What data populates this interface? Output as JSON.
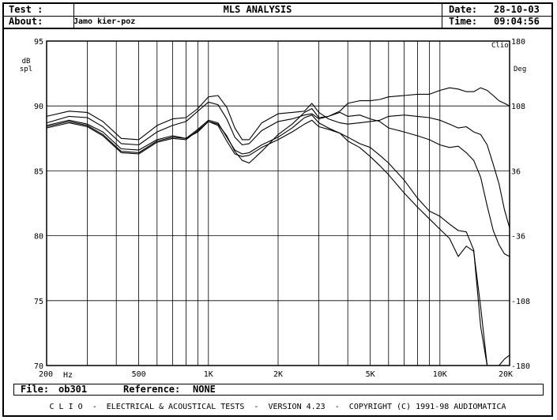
{
  "header": {
    "test_label": "Test :",
    "title": "MLS ANALYSIS",
    "date_label": "Date:",
    "date_value": "28-10-03",
    "about_label": "About:",
    "about_value": "Jamo kier-poz",
    "time_label": "Time:",
    "time_value": "09:04:56"
  },
  "footer": {
    "file_label": "File:",
    "file_value": "ob301",
    "reference_label": "Reference:",
    "reference_value": "NONE",
    "copyright": "C L I O  -  ELECTRICAL & ACOUSTICAL TESTS  -  VERSION 4.23  -  COPYRIGHT (C) 1991-98 AUDIOMATICA"
  },
  "chart_data": {
    "type": "line",
    "x_scale": "log",
    "xlim": [
      200,
      20000
    ],
    "ylim": [
      70,
      95
    ],
    "y2lim": [
      -180,
      180
    ],
    "grid": true,
    "left_unit": "dB\nspl",
    "right_unit": "Deg",
    "corner_label": "Clio",
    "x_ticks": [
      {
        "value": 200,
        "label": "200"
      },
      {
        "value": 500,
        "label": "500"
      },
      {
        "value": 1000,
        "label": "1K"
      },
      {
        "value": 2000,
        "label": "2K"
      },
      {
        "value": 5000,
        "label": "5K"
      },
      {
        "value": 10000,
        "label": "10K"
      },
      {
        "value": 20000,
        "label": "20K"
      }
    ],
    "x_unit_label": "Hz",
    "y_ticks": [
      {
        "value": 95,
        "label": "95"
      },
      {
        "value": 90,
        "label": "90"
      },
      {
        "value": 85,
        "label": "85"
      },
      {
        "value": 80,
        "label": "80"
      },
      {
        "value": 75,
        "label": "75"
      },
      {
        "value": 70,
        "label": "70"
      }
    ],
    "y2_ticks": [
      {
        "value": 180,
        "label": "180"
      },
      {
        "value": 108,
        "label": "108"
      },
      {
        "value": 36,
        "label": "36"
      },
      {
        "value": -36,
        "label": "-36"
      },
      {
        "value": -108,
        "label": "-108"
      },
      {
        "value": -180,
        "label": "-180"
      }
    ],
    "series": [
      {
        "x": [
          200,
          250,
          300,
          350,
          420,
          500,
          600,
          700,
          800,
          900,
          1000,
          1100,
          1200,
          1300,
          1400,
          1500,
          1700,
          2000,
          2300,
          2600,
          2800,
          3000,
          3300,
          3700,
          4000,
          4500,
          5000,
          5500,
          6000,
          7000,
          8000,
          9000,
          10000,
          11000,
          12000,
          13000,
          14000,
          15000,
          16000,
          17000,
          18000,
          19000,
          20000
        ],
        "y": [
          89.2,
          89.6,
          89.5,
          88.8,
          87.5,
          87.4,
          88.5,
          89.0,
          89.1,
          89.8,
          90.7,
          90.8,
          89.9,
          88.3,
          87.4,
          87.4,
          88.7,
          89.4,
          89.5,
          89.6,
          90.2,
          89.5,
          89.0,
          88.7,
          88.6,
          88.7,
          88.8,
          88.9,
          89.2,
          89.3,
          89.2,
          89.1,
          88.9,
          88.6,
          88.3,
          88.4,
          88.0,
          87.8,
          87.0,
          85.5,
          84.0,
          82.0,
          80.6
        ]
      },
      {
        "x": [
          200,
          250,
          300,
          350,
          420,
          500,
          600,
          700,
          800,
          900,
          1000,
          1100,
          1200,
          1300,
          1400,
          1500,
          1700,
          2000,
          2300,
          2600,
          2800,
          3000,
          3300,
          3700,
          4000,
          4500,
          5000,
          5500,
          6000,
          7000,
          8000,
          9000,
          10000,
          11000,
          12000,
          13000,
          14000,
          15000,
          16000,
          17000,
          18000,
          19000,
          20000
        ],
        "y": [
          88.7,
          89.2,
          89.1,
          88.4,
          87.1,
          87.0,
          88.0,
          88.5,
          88.8,
          89.6,
          90.3,
          90.1,
          89.0,
          87.6,
          87.0,
          87.1,
          88.1,
          88.8,
          89.0,
          89.3,
          89.4,
          89.0,
          89.2,
          89.5,
          89.2,
          89.3,
          89.0,
          88.8,
          88.3,
          88.0,
          87.7,
          87.4,
          87.0,
          86.8,
          86.9,
          86.4,
          85.8,
          84.5,
          82.3,
          80.4,
          79.3,
          78.6,
          78.4
        ]
      },
      {
        "x": [
          200,
          250,
          300,
          350,
          420,
          500,
          600,
          700,
          800,
          900,
          1000,
          1100,
          1200,
          1300,
          1400,
          1500,
          1700,
          2000,
          2300,
          2600,
          2800,
          3000,
          3300,
          3700,
          4000,
          4500,
          5000,
          5500,
          6000,
          7000,
          8000,
          9000,
          10000,
          11000,
          12000,
          13000,
          14000,
          15000,
          16000,
          17000,
          18000,
          19000,
          20000
        ],
        "y": [
          88.5,
          88.9,
          88.6,
          88.0,
          86.7,
          86.6,
          87.4,
          87.7,
          87.5,
          88.0,
          88.8,
          88.6,
          87.7,
          86.5,
          85.8,
          85.6,
          86.5,
          87.8,
          88.6,
          89.5,
          89.8,
          89.1,
          89.2,
          89.6,
          90.2,
          90.4,
          90.4,
          90.5,
          90.7,
          90.8,
          90.9,
          90.9,
          91.2,
          91.4,
          91.3,
          91.1,
          91.1,
          91.4,
          91.2,
          90.8,
          90.4,
          90.2,
          90.0
        ]
      },
      {
        "x": [
          200,
          250,
          300,
          350,
          420,
          500,
          600,
          700,
          800,
          900,
          1000,
          1100,
          1200,
          1300,
          1400,
          1500,
          1700,
          2000,
          2300,
          2600,
          2800,
          3000,
          3300,
          3700,
          4000,
          4500,
          5000,
          5500,
          6000,
          7000,
          8000,
          9000,
          10000,
          11000,
          12000,
          13000,
          14000,
          15000,
          16000,
          17000,
          18000,
          19000,
          20000
        ],
        "y": [
          88.3,
          88.7,
          88.4,
          87.7,
          86.4,
          86.3,
          87.2,
          87.5,
          87.4,
          88.1,
          88.8,
          88.5,
          87.3,
          86.3,
          86.1,
          86.2,
          86.8,
          87.4,
          88.0,
          88.6,
          88.9,
          88.4,
          88.2,
          87.9,
          87.6,
          87.1,
          86.8,
          86.2,
          85.6,
          84.3,
          82.9,
          81.9,
          81.5,
          80.9,
          80.4,
          80.3,
          78.9,
          73.0,
          70.0,
          70.0,
          70.0,
          70.5,
          70.8
        ]
      },
      {
        "x": [
          200,
          250,
          300,
          350,
          420,
          500,
          600,
          700,
          800,
          900,
          1000,
          1100,
          1200,
          1300,
          1400,
          1500,
          1700,
          2000,
          2300,
          2600,
          2800,
          3000,
          3300,
          3700,
          4000,
          4500,
          5000,
          5500,
          6000,
          7000,
          8000,
          9000,
          10000,
          11000,
          12000,
          13000,
          14000,
          15000,
          16000
        ],
        "y": [
          88.4,
          88.8,
          88.5,
          87.8,
          86.5,
          86.4,
          87.3,
          87.6,
          87.5,
          88.2,
          88.9,
          88.7,
          87.6,
          86.6,
          86.3,
          86.4,
          87.0,
          87.6,
          88.3,
          89.1,
          89.3,
          88.7,
          88.3,
          87.9,
          87.3,
          86.8,
          86.1,
          85.4,
          84.7,
          83.3,
          82.2,
          81.3,
          80.5,
          79.8,
          78.4,
          79.2,
          78.8,
          74.5,
          70.0
        ]
      }
    ]
  }
}
